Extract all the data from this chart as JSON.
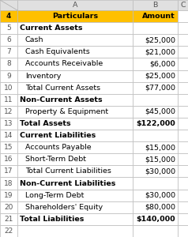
{
  "header_row": [
    "Particulars",
    "Amount"
  ],
  "header_bg": "#FFC000",
  "header_text_color": "#000000",
  "col_header_bg": "#E0E0E0",
  "rows": [
    {
      "row_num": 4,
      "label": "Particulars",
      "value": "Amount",
      "bold": true,
      "section": false,
      "header": true
    },
    {
      "row_num": 5,
      "label": "Current Assets",
      "value": "",
      "bold": true,
      "section": true,
      "header": false
    },
    {
      "row_num": 6,
      "label": "Cash",
      "value": "$25,000",
      "bold": false,
      "section": false,
      "header": false
    },
    {
      "row_num": 7,
      "label": "Cash Equivalents",
      "value": "$21,000",
      "bold": false,
      "section": false,
      "header": false
    },
    {
      "row_num": 8,
      "label": "Accounts Receivable",
      "value": "$6,000",
      "bold": false,
      "section": false,
      "header": false
    },
    {
      "row_num": 9,
      "label": "Inventory",
      "value": "$25,000",
      "bold": false,
      "section": false,
      "header": false
    },
    {
      "row_num": 10,
      "label": "Total Current Assets",
      "value": "$77,000",
      "bold": false,
      "section": false,
      "header": false
    },
    {
      "row_num": 11,
      "label": "Non-Current Assets",
      "value": "",
      "bold": true,
      "section": true,
      "header": false
    },
    {
      "row_num": 12,
      "label": "Property & Equipment",
      "value": "$45,000",
      "bold": false,
      "section": false,
      "header": false
    },
    {
      "row_num": 13,
      "label": "Total Assets",
      "value": "$122,000",
      "bold": true,
      "section": true,
      "header": false
    },
    {
      "row_num": 14,
      "label": "Current Liabilities",
      "value": "",
      "bold": true,
      "section": true,
      "header": false
    },
    {
      "row_num": 15,
      "label": "Accounts Payable",
      "value": "$15,000",
      "bold": false,
      "section": false,
      "header": false
    },
    {
      "row_num": 16,
      "label": "Short-Term Debt",
      "value": "$15,000",
      "bold": false,
      "section": false,
      "header": false
    },
    {
      "row_num": 17,
      "label": "Total Current Liabilities",
      "value": "$30,000",
      "bold": false,
      "section": false,
      "header": false
    },
    {
      "row_num": 18,
      "label": "Non-Current Liabilities",
      "value": "",
      "bold": true,
      "section": true,
      "header": false
    },
    {
      "row_num": 19,
      "label": "Long-Term Debt",
      "value": "$30,000",
      "bold": false,
      "section": false,
      "header": false
    },
    {
      "row_num": 20,
      "label": "Shareholders' Equity",
      "value": "$80,000",
      "bold": false,
      "section": false,
      "header": false
    },
    {
      "row_num": 21,
      "label": "Total Liabilities",
      "value": "$140,000",
      "bold": true,
      "section": true,
      "header": false
    },
    {
      "row_num": 22,
      "label": "",
      "value": "",
      "bold": false,
      "section": false,
      "header": false
    }
  ],
  "grid_color": "#BBBBBB",
  "text_color": "#000000",
  "bg_cell": "#FFFFFF",
  "font_size": 6.8,
  "row_num_label_color": "#555555",
  "col_header_letter_color": "#555555"
}
